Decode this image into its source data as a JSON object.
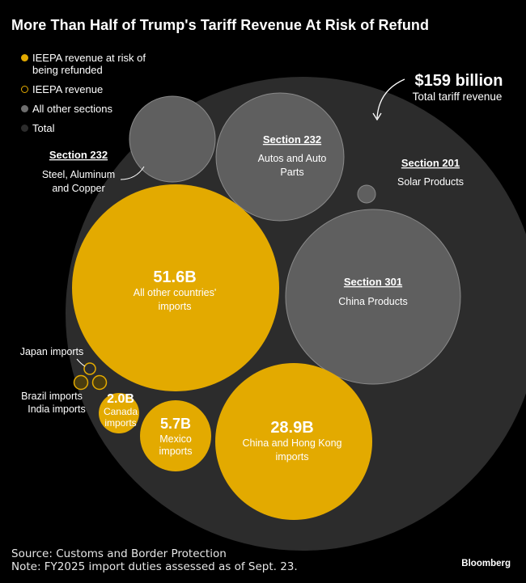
{
  "title": "More Than Half of Trump's Tariff Revenue At Risk of Refund",
  "legend": [
    {
      "label": "IEEPA revenue at risk of being refunded",
      "color": "#E3AA00",
      "style": "fill"
    },
    {
      "label": "IEEPA revenue",
      "color": "#E3AA00",
      "style": "outline"
    },
    {
      "label": "All other sections",
      "color": "#6E6E6E",
      "style": "fill"
    },
    {
      "label": "Total",
      "color": "#2C2C2C",
      "style": "fill"
    }
  ],
  "chart_data": {
    "type": "bubble",
    "total": {
      "value": "$159 billion",
      "label": "Total tariff revenue"
    },
    "bubbles": [
      {
        "id": "section-232-steel",
        "group": "other",
        "heading": "Section 232",
        "label": "Steel, Aluminum and Copper"
      },
      {
        "id": "section-232-autos",
        "group": "other",
        "heading": "Section 232",
        "label": "Autos and Auto Parts"
      },
      {
        "id": "section-201-solar",
        "group": "other",
        "heading": "Section 201",
        "label": "Solar Products"
      },
      {
        "id": "section-301-china",
        "group": "other",
        "heading": "Section 301",
        "label": "China Products"
      },
      {
        "id": "all-other-countries",
        "group": "ieepa",
        "value": 51.6,
        "value_label": "51.6B",
        "label": "All other countries' imports"
      },
      {
        "id": "china-hong-kong",
        "group": "ieepa",
        "value": 28.9,
        "value_label": "28.9B",
        "label": "China and Hong Kong imports"
      },
      {
        "id": "mexico",
        "group": "ieepa",
        "value": 5.7,
        "value_label": "5.7B",
        "label": "Mexico imports"
      },
      {
        "id": "canada",
        "group": "ieepa",
        "value": 2.0,
        "value_label": "2.0B",
        "label": "Canada imports"
      },
      {
        "id": "japan",
        "group": "ieepa-small",
        "label": "Japan imports"
      },
      {
        "id": "brazil",
        "group": "ieepa-small",
        "label": "Brazil imports"
      },
      {
        "id": "india",
        "group": "ieepa-small",
        "label": "India imports"
      }
    ]
  },
  "footer": {
    "source": "Source: Customs and Border Protection",
    "note": "Note: FY2025 import duties assessed as of Sept. 23."
  },
  "brand": "Bloomberg"
}
